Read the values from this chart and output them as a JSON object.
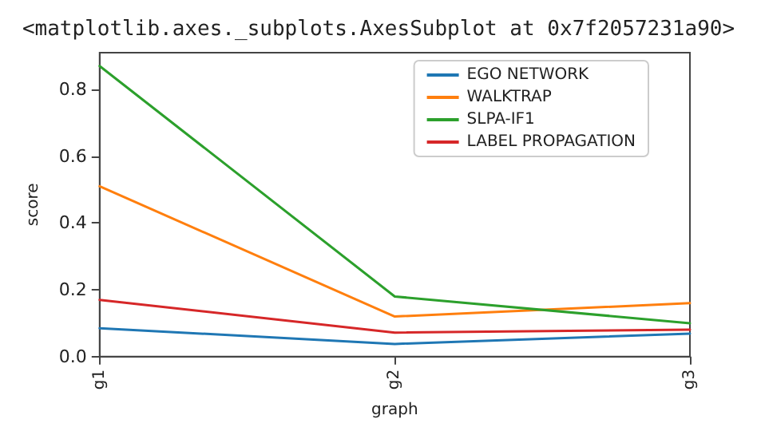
{
  "chart_data": {
    "type": "line",
    "annotations": [
      "<matplotlib.axes._subplots.AxesSubplot at 0x7f2057231a90>"
    ],
    "xlabel": "graph",
    "ylabel": "score",
    "categories": [
      "g1",
      "g2",
      "g3"
    ],
    "series": [
      {
        "name": "EGO NETWORK",
        "color": "#1f77b4",
        "values": [
          0.085,
          0.038,
          0.069
        ]
      },
      {
        "name": "WALKTRAP",
        "color": "#ff7f0e",
        "values": [
          0.51,
          0.12,
          0.16
        ]
      },
      {
        "name": "SLPA-IF1",
        "color": "#2ca02c",
        "values": [
          0.87,
          0.18,
          0.1
        ]
      },
      {
        "name": "LABEL PROPAGATION",
        "color": "#d62728",
        "values": [
          0.17,
          0.072,
          0.081
        ]
      }
    ],
    "ylim": [
      0,
      0.91
    ],
    "yticks": [
      {
        "value": 0,
        "label": "0.0"
      },
      0.2,
      0.4,
      0.6,
      0.8
    ],
    "legend": "top right",
    "grid": false,
    "marker": "none",
    "line_style": "solid"
  }
}
